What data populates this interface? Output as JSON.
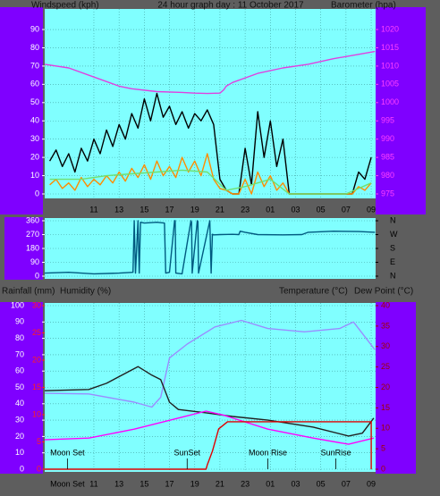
{
  "chart_data": [
    {
      "type": "line",
      "title": "24 hour graph day : 11 October 2017",
      "ylabel": "Windspeed (kph)",
      "y2label": "Barometer (hpa)",
      "xlim": [
        7.1,
        33.35
      ],
      "xticks": [
        11,
        13,
        15,
        17,
        19,
        21,
        23,
        {
          "value": 25,
          "label": "01"
        },
        {
          "value": 27,
          "label": "03"
        },
        {
          "value": 29,
          "label": "05"
        },
        {
          "value": 31,
          "label": "07"
        },
        {
          "value": 33,
          "label": "09"
        }
      ],
      "ylim": [
        0,
        100
      ],
      "yticks": [
        0,
        10,
        20,
        30,
        40,
        50,
        60,
        70,
        80,
        90
      ],
      "ytick_color": "#ffffff",
      "y2lim": [
        975,
        1025
      ],
      "y2ticks": [
        975,
        980,
        985,
        990,
        995,
        1000,
        1005,
        1010,
        1015,
        1020
      ],
      "y2tick_color": "#ff40ff",
      "grid": true,
      "background": "#80ffff",
      "series": [
        {
          "color": "#000000",
          "x": [
            7.5,
            8,
            8.5,
            9,
            9.5,
            10,
            10.5,
            11,
            11.5,
            12,
            12.5,
            13,
            13.5,
            14,
            14.5,
            15,
            15.5,
            16,
            16.5,
            17,
            17.5,
            18,
            18.5,
            19,
            19.5,
            20,
            20.5,
            21,
            21.5,
            22,
            22.5,
            23,
            23.5,
            24,
            24.5,
            25,
            25.5,
            26,
            26.5,
            27,
            27.5,
            28,
            28.5,
            29,
            29.5,
            30,
            30.5,
            31,
            31.5,
            32,
            32.5,
            33
          ],
          "values": [
            18,
            24,
            15,
            22,
            12,
            25,
            18,
            30,
            22,
            35,
            26,
            38,
            30,
            44,
            36,
            52,
            40,
            55,
            42,
            48,
            38,
            45,
            36,
            44,
            40,
            46,
            38,
            8,
            2,
            0,
            0,
            25,
            5,
            45,
            20,
            40,
            15,
            30,
            0,
            0,
            0,
            0,
            0,
            0,
            0,
            0,
            0,
            0,
            0,
            12,
            8,
            20
          ]
        },
        {
          "color": "#ff8c00",
          "x": [
            7.5,
            8,
            8.5,
            9,
            9.5,
            10,
            10.5,
            11,
            11.5,
            12,
            12.5,
            13,
            13.5,
            14,
            14.5,
            15,
            15.5,
            16,
            16.5,
            17,
            17.5,
            18,
            18.5,
            19,
            19.5,
            20,
            20.5,
            21,
            21.5,
            22,
            22.5,
            23,
            23.5,
            24,
            24.5,
            25,
            25.5,
            26,
            26.5,
            27,
            27.5,
            28,
            28.5,
            29,
            29.5,
            30,
            30.5,
            31,
            31.5,
            32,
            32.5,
            33
          ],
          "values": [
            5,
            8,
            3,
            6,
            2,
            9,
            4,
            8,
            5,
            10,
            6,
            12,
            7,
            14,
            9,
            16,
            8,
            18,
            10,
            15,
            9,
            20,
            12,
            18,
            10,
            22,
            8,
            3,
            2,
            0,
            0,
            8,
            0,
            12,
            4,
            10,
            2,
            6,
            0,
            0,
            0,
            0,
            0,
            0,
            0,
            0,
            0,
            0,
            0,
            4,
            2,
            6
          ]
        },
        {
          "color": "#70e070",
          "x": [
            7.5,
            10,
            12,
            14,
            16,
            18,
            20,
            21.5,
            23,
            25,
            26.5,
            31,
            33
          ],
          "values": [
            8,
            8,
            10,
            11,
            12,
            13,
            12,
            2,
            4,
            8,
            0,
            0,
            6
          ]
        },
        {
          "color": "#e040e0",
          "axis": "y2",
          "x": [
            7.1,
            9,
            11,
            13,
            14,
            16,
            18,
            19,
            20,
            21,
            21.3,
            21.5,
            22,
            24,
            26,
            28,
            30,
            32,
            33.3
          ],
          "values": [
            1010.5,
            1009.5,
            1007,
            1004.5,
            1003.8,
            1003,
            1002.8,
            1002.6,
            1002.5,
            1002.6,
            1003.5,
            1004.5,
            1005.5,
            1008,
            1009.5,
            1010.5,
            1012,
            1013.2,
            1014
          ]
        }
      ]
    },
    {
      "type": "line",
      "xlim": [
        7.1,
        33.35
      ],
      "ylim": [
        0,
        360
      ],
      "yticks": [
        0,
        90,
        180,
        270,
        360
      ],
      "ytick_color": "#ffffff",
      "y2lim": [
        0,
        360
      ],
      "y2ticks": [
        {
          "value": 0,
          "label": "N"
        },
        {
          "value": 90,
          "label": "E"
        },
        {
          "value": 180,
          "label": "S"
        },
        {
          "value": 270,
          "label": "W"
        },
        {
          "value": 360,
          "label": "N"
        }
      ],
      "y2tick_color": "#000000",
      "grid": true,
      "background": "#80ffff",
      "series": [
        {
          "color": "#005a80",
          "x": [
            7.1,
            9,
            11,
            13,
            14.1,
            14.2,
            14.3,
            14.5,
            14.6,
            14.7,
            15,
            16,
            16.6,
            16.7,
            17,
            17.4,
            17.45,
            17.5,
            18,
            18.7,
            18.75,
            18.8,
            19.2,
            19.25,
            19.3,
            20.2,
            20.3,
            20.4,
            20.5,
            21,
            22,
            22.5,
            22.6,
            23,
            24,
            26,
            27.5,
            28,
            30,
            32,
            33.3
          ],
          "values": [
            20,
            25,
            15,
            20,
            25,
            360,
            20,
            360,
            20,
            350,
            345,
            350,
            345,
            20,
            25,
            360,
            360,
            20,
            15,
            360,
            350,
            20,
            360,
            355,
            20,
            360,
            20,
            272,
            268,
            270,
            272,
            270,
            292,
            285,
            270,
            268,
            270,
            285,
            292,
            290,
            285
          ]
        }
      ]
    },
    {
      "type": "line",
      "ylabel": "Humidity (%)",
      "y2label": "Temperature (°C)",
      "y3label": "Rainfall (mm)",
      "dewpoint_label": "Dew Point (°C)",
      "xlim": [
        7.1,
        33.35
      ],
      "xticks": [
        11,
        13,
        15,
        17,
        19,
        21,
        23,
        {
          "value": 25,
          "label": "01"
        },
        {
          "value": 27,
          "label": "03"
        },
        {
          "value": 29,
          "label": "05"
        },
        {
          "value": 31,
          "label": "07"
        },
        {
          "value": 33,
          "label": "09"
        }
      ],
      "ylim": [
        0,
        100
      ],
      "yticks": [
        0,
        10,
        20,
        30,
        40,
        50,
        60,
        70,
        80,
        90,
        100
      ],
      "ytick_color": "#ffffff",
      "y2lim": [
        0,
        40
      ],
      "y2ticks": [
        0,
        5,
        10,
        15,
        20,
        25,
        30,
        35,
        40
      ],
      "y2tick_color": "#a00000",
      "y3lim": [
        0,
        30
      ],
      "y3ticks": [
        0,
        5,
        10,
        15,
        20,
        25,
        30
      ],
      "y3tick_color": "#ff2020",
      "grid": true,
      "background": "#80ffff",
      "series": [
        {
          "color": "#9a8cff",
          "x": [
            7.1,
            10.6,
            14.2,
            15.6,
            16.3,
            17,
            18.4,
            20.6,
            22.7,
            24.8,
            27.7,
            30.5,
            31.6,
            33.3
          ],
          "values": [
            46.4,
            46,
            41,
            38,
            44,
            68,
            76.5,
            87,
            91,
            86,
            84,
            86,
            90,
            73
          ]
        },
        {
          "color": "#202020",
          "axis": "y2",
          "x": [
            7.1,
            10.6,
            12,
            14.5,
            15.6,
            16.3,
            17,
            17.7,
            19.9,
            22,
            24.8,
            28.4,
            31.2,
            32.3,
            33.2
          ],
          "values": [
            19.2,
            19.5,
            21,
            25.1,
            23,
            21.9,
            16.4,
            14.6,
            13.8,
            12.9,
            12,
            10.3,
            8.1,
            8.8,
            12.5
          ]
        },
        {
          "color": "#ff00ff",
          "axis": "y2",
          "x": [
            7.1,
            10.6,
            14.2,
            17.7,
            19.9,
            21.3,
            24.8,
            28.4,
            31.2,
            33.2
          ],
          "values": [
            7.2,
            7.6,
            9.8,
            12.5,
            14.2,
            13.2,
            9.8,
            7.6,
            6.1,
            7.6
          ]
        },
        {
          "color": "#e00000",
          "axis": "y3",
          "x": [
            7.1,
            19.9,
            20,
            20.4,
            20.9,
            21.6,
            33,
            33
          ],
          "values": [
            0,
            0,
            0.8,
            3.3,
            7.4,
            8.7,
            8.7,
            0
          ]
        }
      ],
      "annotations": [
        {
          "text": "Moon Set",
          "x": 8.9
        },
        {
          "text": "SunSet",
          "x": 18.4
        },
        {
          "text": "Moon Rise",
          "x": 24.8
        },
        {
          "text": "SunRise",
          "x": 30.2
        }
      ],
      "axis_annotations": [
        {
          "text": "Moon Set",
          "x": 8.9
        }
      ]
    }
  ]
}
